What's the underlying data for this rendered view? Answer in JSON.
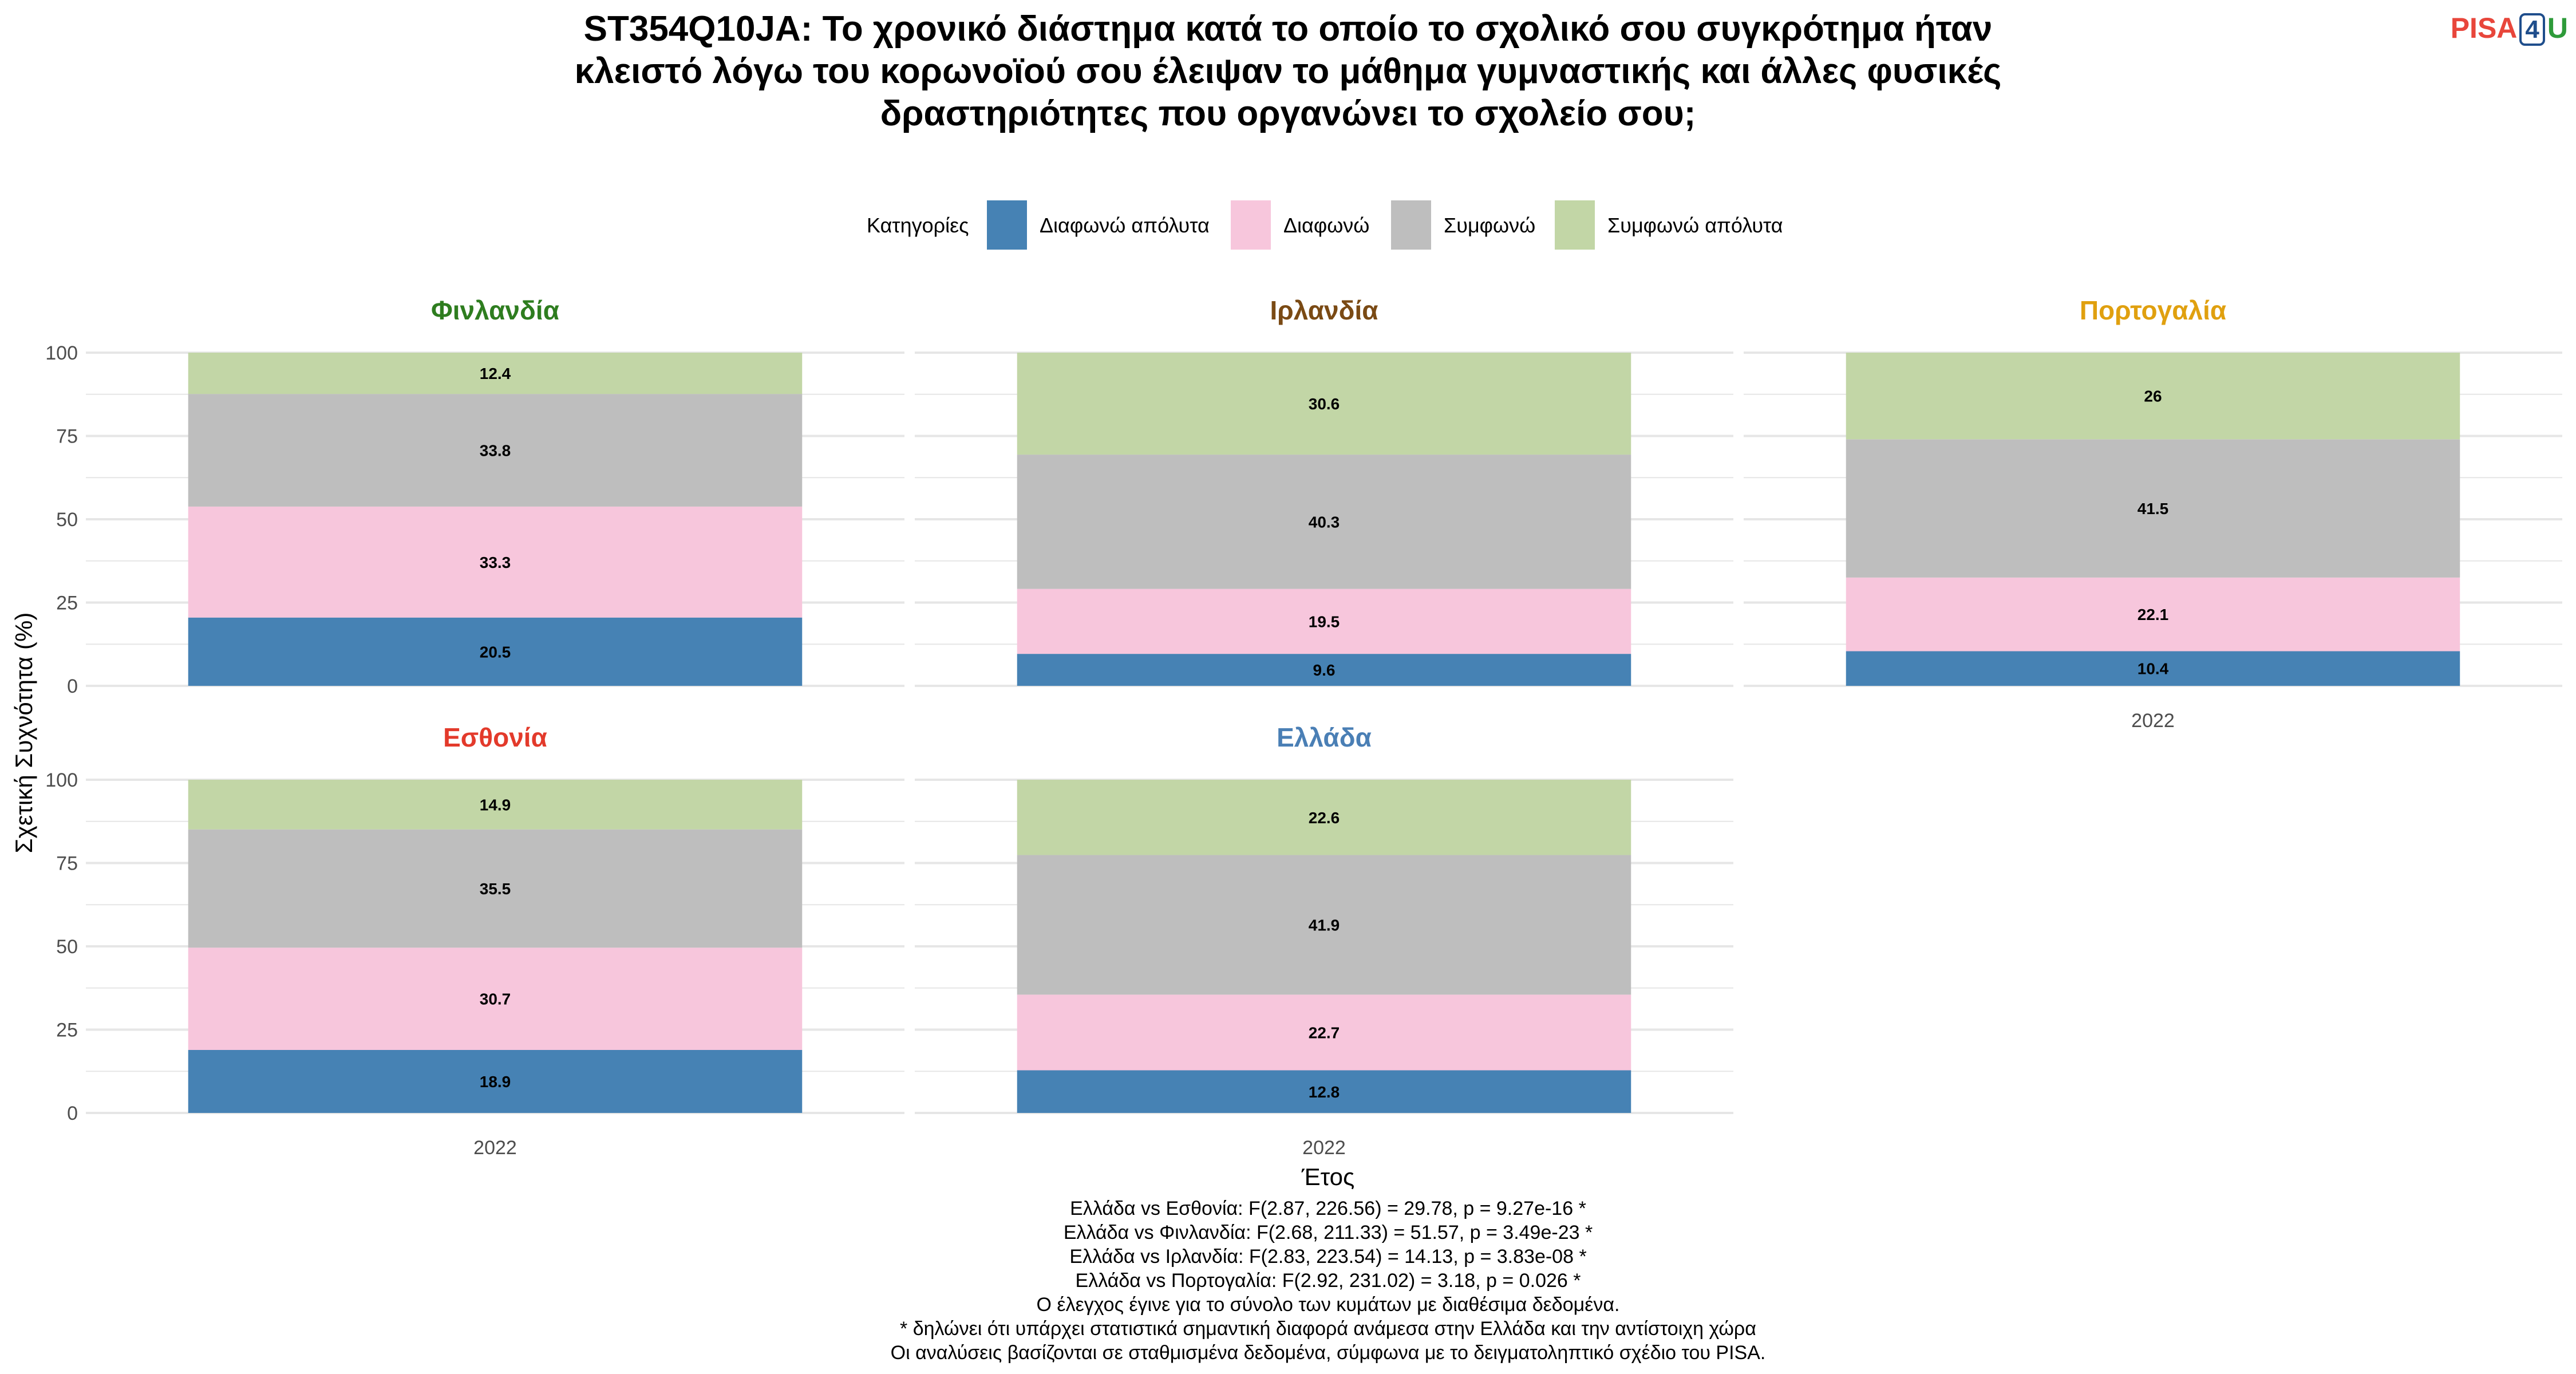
{
  "logo": {
    "part1": "PISA",
    "part2": "4",
    "part3": "U"
  },
  "colors": {
    "text": "#000000",
    "grid": "#e6e6e6",
    "axis_text": "#4d4d4d"
  },
  "chart_data": {
    "type": "bar",
    "stacked": true,
    "title": "ST354Q10JA: Το χρονικό διάστημα κατά το οποίο το σχολικό σου συγκρότημα ήταν κλειστό λόγω του κορωνοϊού σου έλειψαν το μάθημα γυμναστικής και άλλες φυσικές δραστηριότητες που οργανώνει το σχολείο σου;",
    "xlabel": "Έτος",
    "ylabel": "Σχετική Συχνότητα (%)",
    "ylim": [
      0,
      100
    ],
    "yticks": [
      0,
      25,
      50,
      75,
      100
    ],
    "grid": true,
    "legend": {
      "title": "Κατηγορίες",
      "position": "top",
      "entries": [
        {
          "label": "Διαφωνώ απόλυτα",
          "color": "#4682b4"
        },
        {
          "label": "Διαφωνώ",
          "color": "#f7c6dc"
        },
        {
          "label": "Συμφωνώ",
          "color": "#bebebe"
        },
        {
          "label": "Συμφωνώ απόλυτα",
          "color": "#c2d6a6"
        }
      ]
    },
    "panels": [
      {
        "country": "Φινλανδία",
        "color": "#2e7d1f",
        "x": "2022",
        "show_x_ticks": false,
        "values": [
          20.5,
          33.3,
          33.8,
          12.4
        ]
      },
      {
        "country": "Ιρλανδία",
        "color": "#7a4a14",
        "x": "2022",
        "show_x_ticks": false,
        "values": [
          9.6,
          19.5,
          40.3,
          30.6
        ]
      },
      {
        "country": "Πορτογαλία",
        "color": "#e0a00f",
        "x": "2022",
        "show_x_ticks": true,
        "values": [
          10.4,
          22.1,
          41.5,
          26
        ]
      },
      {
        "country": "Εσθονία",
        "color": "#e33a2b",
        "x": "2022",
        "show_x_ticks": true,
        "values": [
          18.9,
          30.7,
          35.5,
          14.9
        ]
      },
      {
        "country": "Ελλάδα",
        "color": "#4a7fb5",
        "x": "2022",
        "show_x_ticks": true,
        "values": [
          12.8,
          22.7,
          41.9,
          22.6
        ]
      }
    ]
  },
  "footnotes": [
    "Ελλάδα vs Εσθονία: F(2.87, 226.56) = 29.78, p = 9.27e-16 *",
    "Ελλάδα vs Φινλανδία: F(2.68, 211.33) = 51.57, p = 3.49e-23 *",
    "Ελλάδα vs Ιρλανδία: F(2.83, 223.54) = 14.13, p = 3.83e-08 *",
    "Ελλάδα vs Πορτογαλία: F(2.92, 231.02) = 3.18, p = 0.026 *",
    "Ο έλεγχος έγινε για το σύνολο των κυμάτων με διαθέσιμα δεδομένα.",
    "* δηλώνει ότι υπάρχει στατιστικά σημαντική διαφορά ανάμεσα στην Ελλάδα και την αντίστοιχη χώρα",
    "Οι αναλύσεις βασίζονται σε σταθμισμένα δεδομένα, σύμφωνα με το δειγματοληπτικό σχέδιο του PISA."
  ]
}
